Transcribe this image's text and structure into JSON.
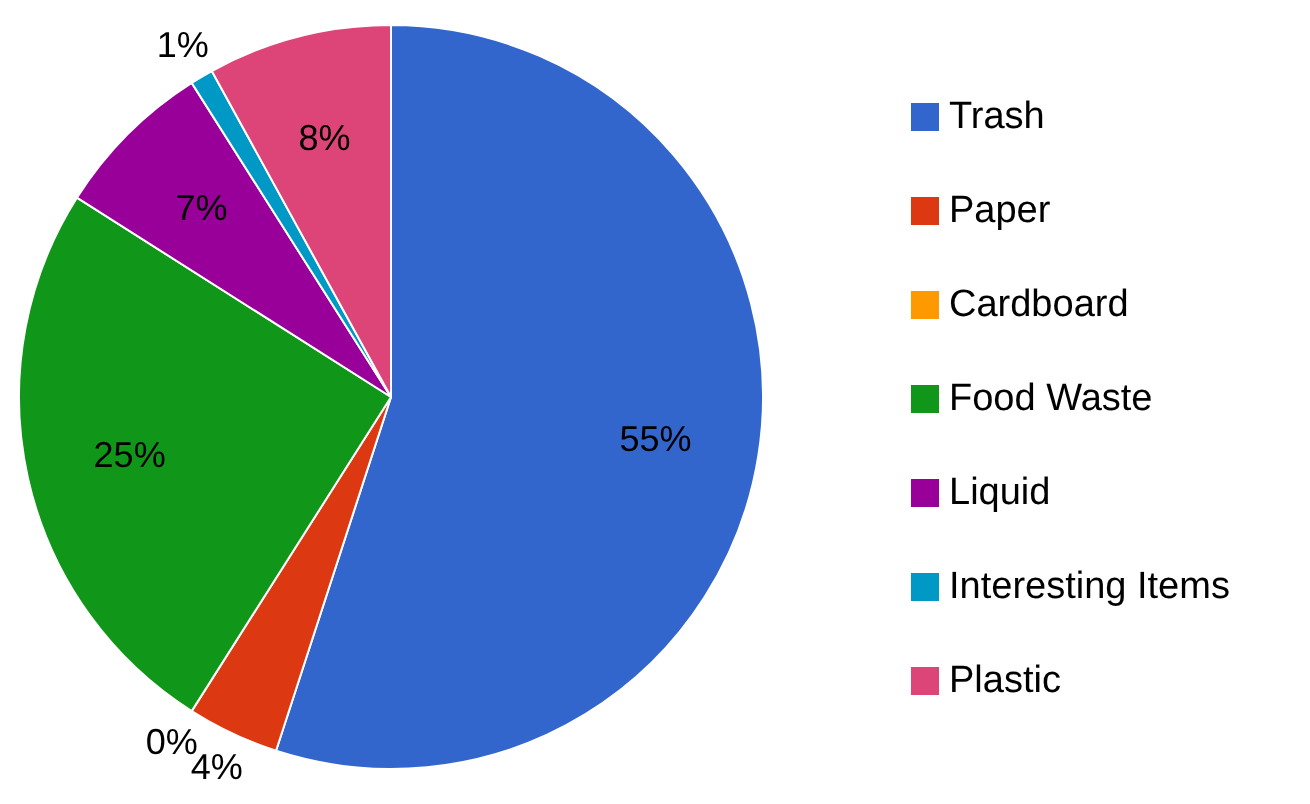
{
  "chart_data": {
    "type": "pie",
    "categories": [
      "Trash",
      "Paper",
      "Cardboard",
      "Food Waste",
      "Liquid",
      "Interesting Items",
      "Plastic"
    ],
    "values": [
      55,
      4,
      0,
      25,
      7,
      1,
      8
    ],
    "colors": [
      "#3366cc",
      "#dc3912",
      "#ff9900",
      "#109618",
      "#990099",
      "#0099c6",
      "#dd4477"
    ],
    "value_labels": [
      "55%",
      "4%",
      "0%",
      "25%",
      "7%",
      "1%",
      "8%"
    ],
    "legend": "right"
  }
}
